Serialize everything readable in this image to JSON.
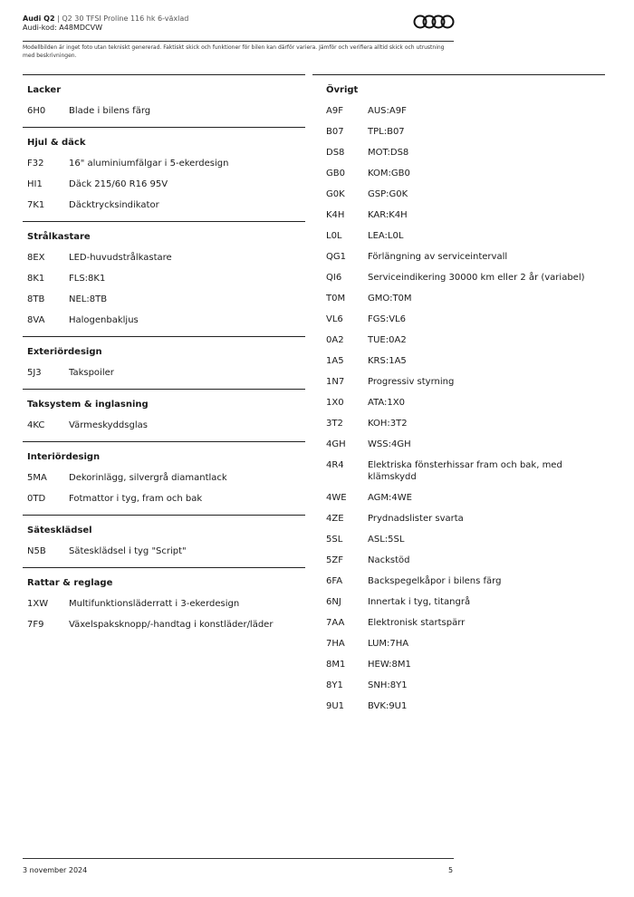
{
  "header": {
    "model": "Audi Q2",
    "variant": "Q2 30 TFSI Proline 116 hk 6-växlad",
    "code": "Audi-kod: A48MDCVW"
  },
  "disclaimer": "Modellbilden är inget foto utan tekniskt genererad. Faktiskt skick och funktioner för bilen kan därför variera. Jämför och verifiera alltid skick och utrustning med beskrivningen.",
  "left": [
    {
      "title": "Lacker",
      "items": [
        [
          "6H0",
          "Blade i bilens färg"
        ]
      ]
    },
    {
      "title": "Hjul & däck",
      "items": [
        [
          "F32",
          "16\" aluminiumfälgar i 5-ekerdesign"
        ],
        [
          "HI1",
          "Däck 215/60 R16 95V"
        ],
        [
          "7K1",
          "Däcktrycksindikator"
        ]
      ]
    },
    {
      "title": "Strålkastare",
      "items": [
        [
          "8EX",
          "LED-huvudstrålkastare"
        ],
        [
          "8K1",
          "FLS:8K1"
        ],
        [
          "8TB",
          "NEL:8TB"
        ],
        [
          "8VA",
          "Halogenbakljus"
        ]
      ]
    },
    {
      "title": "Exteriördesign",
      "items": [
        [
          "5J3",
          "Takspoiler"
        ]
      ]
    },
    {
      "title": "Taksystem & inglasning",
      "items": [
        [
          "4KC",
          "Värmeskyddsglas"
        ]
      ]
    },
    {
      "title": "Interiördesign",
      "items": [
        [
          "5MA",
          "Dekorinlägg, silvergrå diamantlack"
        ],
        [
          "0TD",
          "Fotmattor i tyg, fram och bak"
        ]
      ]
    },
    {
      "title": "Sätesklädsel",
      "items": [
        [
          "N5B",
          "Sätesklädsel i tyg \"Script\""
        ]
      ]
    },
    {
      "title": "Rattar & reglage",
      "items": [
        [
          "1XW",
          "Multifunktionsläderratt i 3-ekerdesign"
        ],
        [
          "7F9",
          "Växelspaksknopp/-handtag i konstläder/läder"
        ]
      ]
    }
  ],
  "right": [
    {
      "title": "Övrigt",
      "items": [
        [
          "A9F",
          "AUS:A9F"
        ],
        [
          "B07",
          "TPL:B07"
        ],
        [
          "DS8",
          "MOT:DS8"
        ],
        [
          "GB0",
          "KOM:GB0"
        ],
        [
          "G0K",
          "GSP:G0K"
        ],
        [
          "K4H",
          "KAR:K4H"
        ],
        [
          "L0L",
          "LEA:L0L"
        ],
        [
          "QG1",
          "Förlängning av serviceintervall"
        ],
        [
          "QI6",
          "Serviceindikering 30000 km eller 2 år (variabel)"
        ],
        [
          "T0M",
          "GMO:T0M"
        ],
        [
          "VL6",
          "FGS:VL6"
        ],
        [
          "0A2",
          "TUE:0A2"
        ],
        [
          "1A5",
          "KRS:1A5"
        ],
        [
          "1N7",
          "Progressiv styrning"
        ],
        [
          "1X0",
          "ATA:1X0"
        ],
        [
          "3T2",
          "KOH:3T2"
        ],
        [
          "4GH",
          "WSS:4GH"
        ],
        [
          "4R4",
          "Elektriska fönsterhissar fram och bak, med klämskydd"
        ],
        [
          "4WE",
          "AGM:4WE"
        ],
        [
          "4ZE",
          "Prydnadslister svarta"
        ],
        [
          "5SL",
          "ASL:5SL"
        ],
        [
          "5ZF",
          "Nackstöd"
        ],
        [
          "6FA",
          "Backspegelkåpor i bilens färg"
        ],
        [
          "6NJ",
          "Innertak i tyg, titangrå"
        ],
        [
          "7AA",
          "Elektronisk startspärr"
        ],
        [
          "7HA",
          "LUM:7HA"
        ],
        [
          "8M1",
          "HEW:8M1"
        ],
        [
          "8Y1",
          "SNH:8Y1"
        ],
        [
          "9U1",
          "BVK:9U1"
        ]
      ]
    }
  ],
  "footer": {
    "date": "3 november 2024",
    "page": "5"
  }
}
